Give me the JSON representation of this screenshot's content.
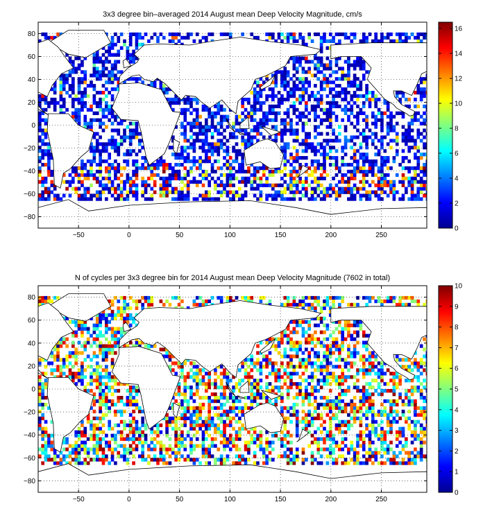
{
  "chart_data": [
    {
      "type": "heatmap",
      "title": "3x3 degree bin–averaged 2014 August mean Deep Velocity Magnitude, cm/s",
      "xlabel": "",
      "ylabel": "",
      "xlim": [
        -90,
        295
      ],
      "ylim": [
        -90,
        90
      ],
      "xticks": [
        -50,
        0,
        50,
        100,
        150,
        200,
        250
      ],
      "yticks": [
        -80,
        -60,
        -40,
        -20,
        0,
        20,
        40,
        60,
        80
      ],
      "grid": true,
      "bin_size_deg": 3,
      "colorbar": {
        "range": [
          0,
          16.5
        ],
        "ticks": [
          0,
          2,
          4,
          6,
          8,
          10,
          12,
          14,
          16
        ],
        "colormap": "jet"
      },
      "map": "world coastlines"
    },
    {
      "type": "heatmap",
      "title": "N of cycles per 3x3 degree bin for 2014 August mean Deep Velocity Magnitude (7602 in total)",
      "xlabel": "",
      "ylabel": "",
      "xlim": [
        -90,
        295
      ],
      "ylim": [
        -90,
        90
      ],
      "xticks": [
        -50,
        0,
        50,
        100,
        150,
        200,
        250
      ],
      "yticks": [
        -80,
        -60,
        -40,
        -20,
        0,
        20,
        40,
        60,
        80
      ],
      "grid": true,
      "bin_size_deg": 3,
      "colorbar": {
        "range": [
          0,
          10
        ],
        "ticks": [
          0,
          1,
          2,
          3,
          4,
          5,
          6,
          7,
          8,
          9,
          10
        ],
        "colormap": "jet"
      },
      "map": "world coastlines"
    }
  ]
}
